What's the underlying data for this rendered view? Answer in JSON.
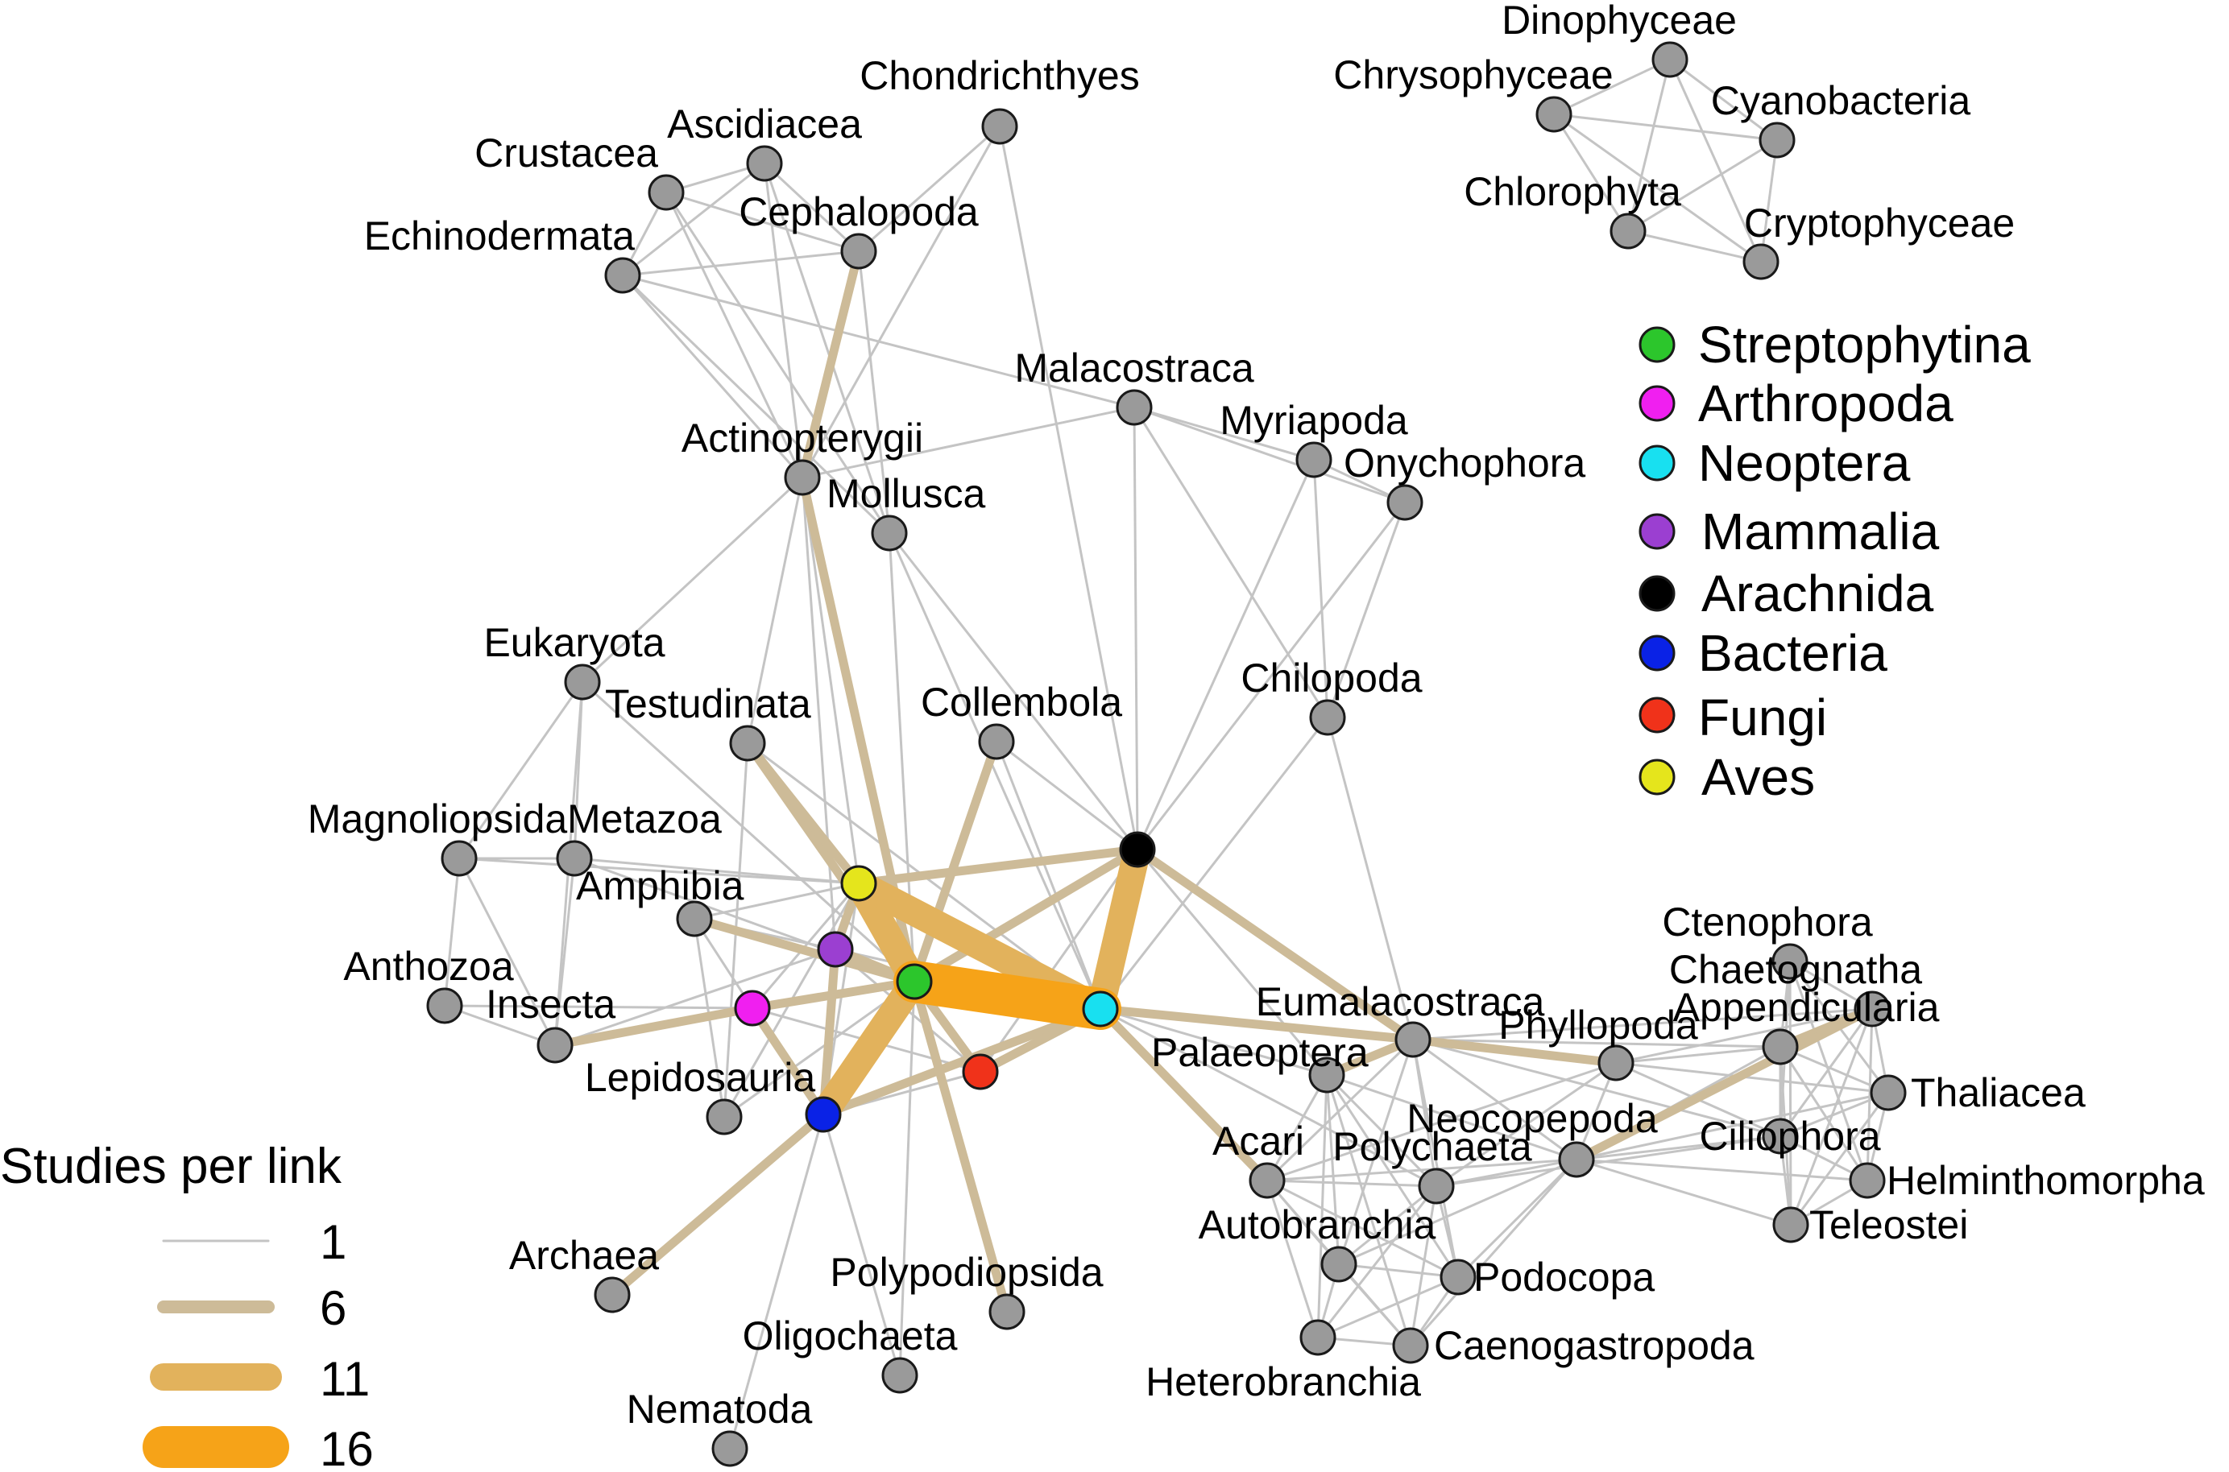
{
  "colors": {
    "edge1": "#c4c4c4",
    "edge6": "#cdbb98",
    "edge11": "#e2b25c",
    "edge16": "#f6a318",
    "node_default": "#9a9a9a",
    "node_stroke": "#1a1a1a"
  },
  "nodes": [
    {
      "id": "chondrichthyes",
      "label": "Chondrichthyes",
      "fill": "#9a9a9a"
    },
    {
      "id": "ascidiacea",
      "label": "Ascidiacea",
      "fill": "#9a9a9a"
    },
    {
      "id": "crustacea",
      "label": "Crustacea",
      "fill": "#9a9a9a"
    },
    {
      "id": "cephalopoda",
      "label": "Cephalopoda",
      "fill": "#9a9a9a"
    },
    {
      "id": "echinodermata",
      "label": "Echinodermata",
      "fill": "#9a9a9a"
    },
    {
      "id": "malacostraca",
      "label": "Malacostraca",
      "fill": "#9a9a9a"
    },
    {
      "id": "myriapoda",
      "label": "Myriapoda",
      "fill": "#9a9a9a"
    },
    {
      "id": "onychophora",
      "label": "Onychophora",
      "fill": "#9a9a9a"
    },
    {
      "id": "actinopterygii",
      "label": "Actinopterygii",
      "fill": "#9a9a9a"
    },
    {
      "id": "mollusca",
      "label": "Mollusca",
      "fill": "#9a9a9a"
    },
    {
      "id": "eukaryota",
      "label": "Eukaryota",
      "fill": "#9a9a9a"
    },
    {
      "id": "testudinata",
      "label": "Testudinata",
      "fill": "#9a9a9a"
    },
    {
      "id": "collembola",
      "label": "Collembola",
      "fill": "#9a9a9a"
    },
    {
      "id": "chilopoda",
      "label": "Chilopoda",
      "fill": "#9a9a9a"
    },
    {
      "id": "magnoliopsida",
      "label": "Magnoliopsida",
      "fill": "#9a9a9a"
    },
    {
      "id": "metazoa",
      "label": "Metazoa",
      "fill": "#9a9a9a"
    },
    {
      "id": "amphibia",
      "label": "Amphibia",
      "fill": "#9a9a9a"
    },
    {
      "id": "anthozoa",
      "label": "Anthozoa",
      "fill": "#9a9a9a"
    },
    {
      "id": "insecta",
      "label": "Insecta",
      "fill": "#9a9a9a"
    },
    {
      "id": "lepidosauria",
      "label": "Lepidosauria",
      "fill": "#9a9a9a"
    },
    {
      "id": "archaea",
      "label": "Archaea",
      "fill": "#9a9a9a"
    },
    {
      "id": "polypodiopsida",
      "label": "Polypodiopsida",
      "fill": "#9a9a9a"
    },
    {
      "id": "oligochaeta",
      "label": "Oligochaeta",
      "fill": "#9a9a9a"
    },
    {
      "id": "nematoda",
      "label": "Nematoda",
      "fill": "#9a9a9a"
    },
    {
      "id": "aves",
      "label": "",
      "fill": "#e5e51c"
    },
    {
      "id": "mammalia",
      "label": "",
      "fill": "#9b3fd1"
    },
    {
      "id": "streptophytina",
      "label": "",
      "fill": "#2cc62c"
    },
    {
      "id": "arthropoda",
      "label": "",
      "fill": "#f01ff0"
    },
    {
      "id": "neoptera",
      "label": "",
      "fill": "#18e0f0"
    },
    {
      "id": "arachnida",
      "label": "",
      "fill": "#000000"
    },
    {
      "id": "fungi",
      "label": "",
      "fill": "#f0321a"
    },
    {
      "id": "bacteria",
      "label": "",
      "fill": "#0a22e6"
    },
    {
      "id": "eumalacostraca",
      "label": "Eumalacostraca",
      "fill": "#9a9a9a"
    },
    {
      "id": "palaeoptera",
      "label": "Palaeoptera",
      "fill": "#9a9a9a"
    },
    {
      "id": "phyllopoda",
      "label": "Phyllopoda",
      "fill": "#9a9a9a"
    },
    {
      "id": "acari",
      "label": "Acari",
      "fill": "#9a9a9a"
    },
    {
      "id": "polychaeta",
      "label": "Polychaeta",
      "fill": "#9a9a9a"
    },
    {
      "id": "neocopepoda",
      "label": "Neocopepoda",
      "fill": "#9a9a9a"
    },
    {
      "id": "autobranchia",
      "label": "Autobranchia",
      "fill": "#9a9a9a"
    },
    {
      "id": "podocopa",
      "label": "Podocopa",
      "fill": "#9a9a9a"
    },
    {
      "id": "heterobranchia",
      "label": "Heterobranchia",
      "fill": "#9a9a9a"
    },
    {
      "id": "caenogastropoda",
      "label": "Caenogastropoda",
      "fill": "#9a9a9a"
    },
    {
      "id": "ciliophora",
      "label": "Ciliophora",
      "fill": "#9a9a9a"
    },
    {
      "id": "ctenophora",
      "label": "Ctenophora",
      "fill": "#9a9a9a"
    },
    {
      "id": "appendicularia",
      "label": "Appendicularia",
      "fill": "#9a9a9a"
    },
    {
      "id": "chaetognatha",
      "label": "Chaetognatha",
      "fill": "#9a9a9a"
    },
    {
      "id": "thaliacea",
      "label": "Thaliacea",
      "fill": "#9a9a9a"
    },
    {
      "id": "helminthomorpha",
      "label": "Helminthomorpha",
      "fill": "#9a9a9a"
    },
    {
      "id": "teleostei",
      "label": "Teleostei",
      "fill": "#9a9a9a"
    },
    {
      "id": "dinophyceae",
      "label": "Dinophyceae",
      "fill": "#9a9a9a"
    },
    {
      "id": "chrysophyceae",
      "label": "Chrysophyceae",
      "fill": "#9a9a9a"
    },
    {
      "id": "cyanobacteria",
      "label": "Cyanobacteria",
      "fill": "#9a9a9a"
    },
    {
      "id": "chlorophyta",
      "label": "Chlorophyta",
      "fill": "#9a9a9a"
    },
    {
      "id": "cryptophyceae",
      "label": "Cryptophyceae",
      "fill": "#9a9a9a"
    }
  ],
  "edges": [
    [
      "streptophytina",
      "neoptera",
      16
    ],
    [
      "streptophytina",
      "arachnida",
      6
    ],
    [
      "arachnida",
      "neoptera",
      11
    ],
    [
      "streptophytina",
      "aves",
      11
    ],
    [
      "streptophytina",
      "bacteria",
      11
    ],
    [
      "streptophytina",
      "fungi",
      6
    ],
    [
      "streptophytina",
      "arthropoda",
      6
    ],
    [
      "streptophytina",
      "mammalia",
      6
    ],
    [
      "streptophytina",
      "testudinata",
      6
    ],
    [
      "streptophytina",
      "collembola",
      6
    ],
    [
      "streptophytina",
      "amphibia",
      6
    ],
    [
      "streptophytina",
      "actinopterygii",
      6
    ],
    [
      "streptophytina",
      "polypodiopsida",
      6
    ],
    [
      "neoptera",
      "aves",
      11
    ],
    [
      "neoptera",
      "bacteria",
      6
    ],
    [
      "neoptera",
      "fungi",
      6
    ],
    [
      "neoptera",
      "eumalacostraca",
      6
    ],
    [
      "neoptera",
      "acari",
      6
    ],
    [
      "arachnida",
      "eumalacostraca",
      6
    ],
    [
      "arachnida",
      "aves",
      6
    ],
    [
      "aves",
      "testudinata",
      6
    ],
    [
      "aves",
      "mammalia",
      6
    ],
    [
      "mammalia",
      "bacteria",
      6
    ],
    [
      "arthropoda",
      "insecta",
      6
    ],
    [
      "arthropoda",
      "bacteria",
      6
    ],
    [
      "bacteria",
      "archaea",
      6
    ],
    [
      "actinopterygii",
      "cephalopoda",
      6
    ],
    [
      "eumalacostraca",
      "phyllopoda",
      6
    ],
    [
      "eumalacostraca",
      "palaeoptera",
      6
    ],
    [
      "appendicularia",
      "chaetognatha",
      6
    ],
    [
      "chaetognatha",
      "neocopepoda",
      6
    ],
    [
      "chondrichthyes",
      "cephalopoda",
      1
    ],
    [
      "chondrichthyes",
      "actinopterygii",
      1
    ],
    [
      "chondrichthyes",
      "arachnida",
      1
    ],
    [
      "ascidiacea",
      "crustacea",
      1
    ],
    [
      "ascidiacea",
      "cephalopoda",
      1
    ],
    [
      "ascidiacea",
      "echinodermata",
      1
    ],
    [
      "ascidiacea",
      "actinopterygii",
      1
    ],
    [
      "ascidiacea",
      "mollusca",
      1
    ],
    [
      "crustacea",
      "echinodermata",
      1
    ],
    [
      "crustacea",
      "cephalopoda",
      1
    ],
    [
      "crustacea",
      "actinopterygii",
      1
    ],
    [
      "crustacea",
      "mollusca",
      1
    ],
    [
      "echinodermata",
      "cephalopoda",
      1
    ],
    [
      "echinodermata",
      "actinopterygii",
      1
    ],
    [
      "echinodermata",
      "mollusca",
      1
    ],
    [
      "echinodermata",
      "malacostraca",
      1
    ],
    [
      "cephalopoda",
      "mollusca",
      1
    ],
    [
      "malacostraca",
      "actinopterygii",
      1
    ],
    [
      "malacostraca",
      "myriapoda",
      1
    ],
    [
      "malacostraca",
      "onychophora",
      1
    ],
    [
      "malacostraca",
      "arachnida",
      1
    ],
    [
      "malacostraca",
      "chilopoda",
      1
    ],
    [
      "myriapoda",
      "onychophora",
      1
    ],
    [
      "myriapoda",
      "chilopoda",
      1
    ],
    [
      "myriapoda",
      "arachnida",
      1
    ],
    [
      "onychophora",
      "chilopoda",
      1
    ],
    [
      "onychophora",
      "arachnida",
      1
    ],
    [
      "actinopterygii",
      "eukaryota",
      1
    ],
    [
      "actinopterygii",
      "testudinata",
      1
    ],
    [
      "actinopterygii",
      "mammalia",
      1
    ],
    [
      "actinopterygii",
      "aves",
      1
    ],
    [
      "mollusca",
      "neoptera",
      1
    ],
    [
      "mollusca",
      "arachnida",
      1
    ],
    [
      "mollusca",
      "streptophytina",
      1
    ],
    [
      "eukaryota",
      "metazoa",
      1
    ],
    [
      "eukaryota",
      "magnoliopsida",
      1
    ],
    [
      "eukaryota",
      "insecta",
      1
    ],
    [
      "eukaryota",
      "streptophytina",
      1
    ],
    [
      "testudinata",
      "neoptera",
      1
    ],
    [
      "testudinata",
      "lepidosauria",
      1
    ],
    [
      "collembola",
      "neoptera",
      1
    ],
    [
      "collembola",
      "arachnida",
      1
    ],
    [
      "chilopoda",
      "neoptera",
      1
    ],
    [
      "chilopoda",
      "eumalacostraca",
      1
    ],
    [
      "magnoliopsida",
      "metazoa",
      1
    ],
    [
      "magnoliopsida",
      "anthozoa",
      1
    ],
    [
      "magnoliopsida",
      "insecta",
      1
    ],
    [
      "magnoliopsida",
      "aves",
      1
    ],
    [
      "metazoa",
      "aves",
      1
    ],
    [
      "metazoa",
      "streptophytina",
      1
    ],
    [
      "metazoa",
      "insecta",
      1
    ],
    [
      "amphibia",
      "aves",
      1
    ],
    [
      "amphibia",
      "lepidosauria",
      1
    ],
    [
      "amphibia",
      "mammalia",
      1
    ],
    [
      "amphibia",
      "arthropoda",
      1
    ],
    [
      "anthozoa",
      "insecta",
      1
    ],
    [
      "anthozoa",
      "arthropoda",
      1
    ],
    [
      "insecta",
      "mammalia",
      1
    ],
    [
      "insecta",
      "streptophytina",
      1
    ],
    [
      "lepidosauria",
      "aves",
      1
    ],
    [
      "lepidosauria",
      "streptophytina",
      1
    ],
    [
      "aves",
      "bacteria",
      1
    ],
    [
      "arthropoda",
      "aves",
      1
    ],
    [
      "arthropoda",
      "fungi",
      1
    ],
    [
      "mammalia",
      "neoptera",
      1
    ],
    [
      "mammalia",
      "fungi",
      1
    ],
    [
      "bacteria",
      "fungi",
      1
    ],
    [
      "bacteria",
      "oligochaeta",
      1
    ],
    [
      "bacteria",
      "nematoda",
      1
    ],
    [
      "streptophytina",
      "oligochaeta",
      1
    ],
    [
      "fungi",
      "arachnida",
      1
    ],
    [
      "neoptera",
      "palaeoptera",
      1
    ],
    [
      "neoptera",
      "polychaeta",
      1
    ],
    [
      "arachnida",
      "palaeoptera",
      1
    ],
    [
      "eumalacostraca",
      "acari",
      1
    ],
    [
      "eumalacostraca",
      "polychaeta",
      1
    ],
    [
      "eumalacostraca",
      "neocopepoda",
      1
    ],
    [
      "eumalacostraca",
      "ciliophora",
      1
    ],
    [
      "eumalacostraca",
      "chaetognatha",
      1
    ],
    [
      "eumalacostraca",
      "appendicularia",
      1
    ],
    [
      "eumalacostraca",
      "autobranchia",
      1
    ],
    [
      "eumalacostraca",
      "podocopa",
      1
    ],
    [
      "palaeoptera",
      "acari",
      1
    ],
    [
      "palaeoptera",
      "polychaeta",
      1
    ],
    [
      "palaeoptera",
      "autobranchia",
      1
    ],
    [
      "palaeoptera",
      "podocopa",
      1
    ],
    [
      "palaeoptera",
      "caenogastropoda",
      1
    ],
    [
      "palaeoptera",
      "heterobranchia",
      1
    ],
    [
      "palaeoptera",
      "neocopepoda",
      1
    ],
    [
      "phyllopoda",
      "neocopepoda",
      1
    ],
    [
      "phyllopoda",
      "ciliophora",
      1
    ],
    [
      "phyllopoda",
      "appendicularia",
      1
    ],
    [
      "phyllopoda",
      "chaetognatha",
      1
    ],
    [
      "phyllopoda",
      "thaliacea",
      1
    ],
    [
      "phyllopoda",
      "acari",
      1
    ],
    [
      "phyllopoda",
      "polychaeta",
      1
    ],
    [
      "acari",
      "polychaeta",
      1
    ],
    [
      "acari",
      "neocopepoda",
      1
    ],
    [
      "acari",
      "autobranchia",
      1
    ],
    [
      "acari",
      "podocopa",
      1
    ],
    [
      "acari",
      "heterobranchia",
      1
    ],
    [
      "acari",
      "caenogastropoda",
      1
    ],
    [
      "polychaeta",
      "neocopepoda",
      1
    ],
    [
      "polychaeta",
      "autobranchia",
      1
    ],
    [
      "polychaeta",
      "podocopa",
      1
    ],
    [
      "polychaeta",
      "heterobranchia",
      1
    ],
    [
      "polychaeta",
      "caenogastropoda",
      1
    ],
    [
      "polychaeta",
      "ciliophora",
      1
    ],
    [
      "neocopepoda",
      "ciliophora",
      1
    ],
    [
      "neocopepoda",
      "autobranchia",
      1
    ],
    [
      "neocopepoda",
      "podocopa",
      1
    ],
    [
      "neocopepoda",
      "caenogastropoda",
      1
    ],
    [
      "neocopepoda",
      "chaetognatha",
      1
    ],
    [
      "neocopepoda",
      "appendicularia",
      1
    ],
    [
      "neocopepoda",
      "thaliacea",
      1
    ],
    [
      "neocopepoda",
      "helminthomorpha",
      1
    ],
    [
      "neocopepoda",
      "teleostei",
      1
    ],
    [
      "autobranchia",
      "podocopa",
      1
    ],
    [
      "autobranchia",
      "heterobranchia",
      1
    ],
    [
      "autobranchia",
      "caenogastropoda",
      1
    ],
    [
      "podocopa",
      "heterobranchia",
      1
    ],
    [
      "podocopa",
      "caenogastropoda",
      1
    ],
    [
      "heterobranchia",
      "caenogastropoda",
      1
    ],
    [
      "ciliophora",
      "chaetognatha",
      1
    ],
    [
      "ciliophora",
      "appendicularia",
      1
    ],
    [
      "ciliophora",
      "ctenophora",
      1
    ],
    [
      "ciliophora",
      "thaliacea",
      1
    ],
    [
      "ciliophora",
      "helminthomorpha",
      1
    ],
    [
      "ciliophora",
      "teleostei",
      1
    ],
    [
      "ctenophora",
      "appendicularia",
      1
    ],
    [
      "ctenophora",
      "chaetognatha",
      1
    ],
    [
      "ctenophora",
      "thaliacea",
      1
    ],
    [
      "ctenophora",
      "helminthomorpha",
      1
    ],
    [
      "ctenophora",
      "teleostei",
      1
    ],
    [
      "appendicularia",
      "thaliacea",
      1
    ],
    [
      "appendicularia",
      "helminthomorpha",
      1
    ],
    [
      "appendicularia",
      "teleostei",
      1
    ],
    [
      "chaetognatha",
      "thaliacea",
      1
    ],
    [
      "chaetognatha",
      "helminthomorpha",
      1
    ],
    [
      "chaetognatha",
      "teleostei",
      1
    ],
    [
      "thaliacea",
      "helminthomorpha",
      1
    ],
    [
      "thaliacea",
      "teleostei",
      1
    ],
    [
      "helminthomorpha",
      "teleostei",
      1
    ],
    [
      "dinophyceae",
      "chrysophyceae",
      1
    ],
    [
      "dinophyceae",
      "cyanobacteria",
      1
    ],
    [
      "dinophyceae",
      "chlorophyta",
      1
    ],
    [
      "dinophyceae",
      "cryptophyceae",
      1
    ],
    [
      "chrysophyceae",
      "cyanobacteria",
      1
    ],
    [
      "chrysophyceae",
      "chlorophyta",
      1
    ],
    [
      "chrysophyceae",
      "cryptophyceae",
      1
    ],
    [
      "cyanobacteria",
      "chlorophyta",
      1
    ],
    [
      "cyanobacteria",
      "cryptophyceae",
      1
    ],
    [
      "chlorophyta",
      "cryptophyceae",
      1
    ]
  ],
  "legend": {
    "items": [
      {
        "label": "Streptophytina",
        "color": "#2cc62c"
      },
      {
        "label": "Arthropoda",
        "color": "#f01ff0"
      },
      {
        "label": "Neoptera",
        "color": "#18e0f0"
      },
      {
        "label": "Mammalia",
        "color": "#9b3fd1"
      },
      {
        "label": "Arachnida",
        "color": "#000000"
      },
      {
        "label": "Bacteria",
        "color": "#0a22e6"
      },
      {
        "label": "Fungi",
        "color": "#f0321a"
      },
      {
        "label": "Aves",
        "color": "#e5e51c"
      }
    ]
  },
  "size_legend": {
    "title": "Studies per link",
    "items": [
      {
        "label": "1",
        "studies": 1,
        "color": "#c4c4c4"
      },
      {
        "label": "6",
        "studies": 6,
        "color": "#cdbb98"
      },
      {
        "label": "11",
        "studies": 11,
        "color": "#e2b25c"
      },
      {
        "label": "16",
        "studies": 16,
        "color": "#f6a318"
      }
    ]
  }
}
